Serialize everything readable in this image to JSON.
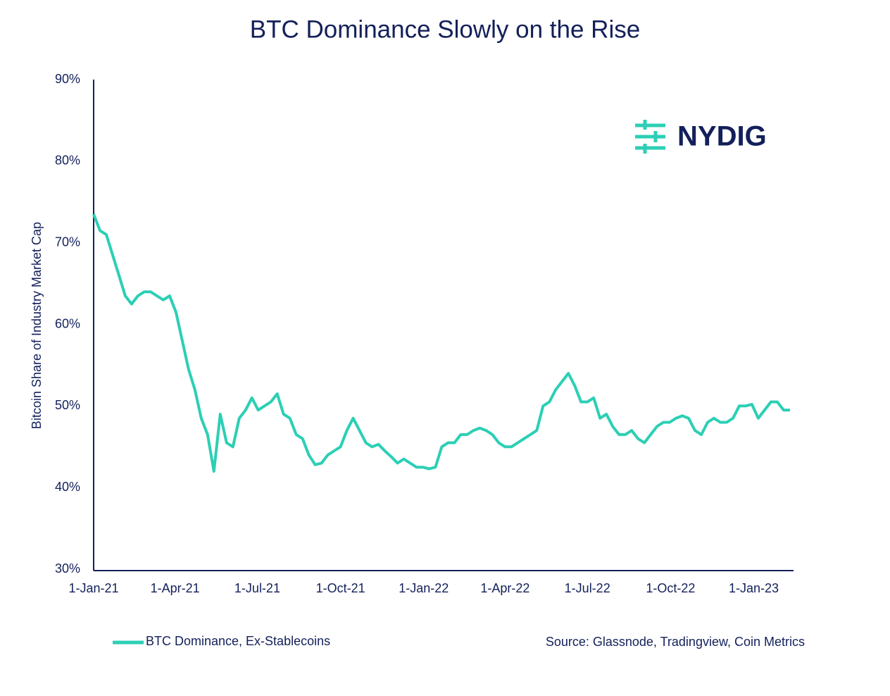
{
  "chart_data": {
    "type": "line",
    "title": "BTC Dominance Slowly on the Rise",
    "y_label": "Bitcoin Share of Industry Market Cap",
    "logo": "NYDIG",
    "source": "Source: Glassnode, Tradingview, Coin Metrics",
    "x": [
      "2021-01-01",
      "2021-01-08",
      "2021-01-15",
      "2021-01-22",
      "2021-01-29",
      "2021-02-05",
      "2021-02-12",
      "2021-02-19",
      "2021-02-26",
      "2021-03-05",
      "2021-03-12",
      "2021-03-19",
      "2021-03-26",
      "2021-04-02",
      "2021-04-09",
      "2021-04-16",
      "2021-04-23",
      "2021-04-30",
      "2021-05-07",
      "2021-05-14",
      "2021-05-21",
      "2021-05-28",
      "2021-06-04",
      "2021-06-11",
      "2021-06-18",
      "2021-06-25",
      "2021-07-02",
      "2021-07-09",
      "2021-07-16",
      "2021-07-23",
      "2021-07-30",
      "2021-08-06",
      "2021-08-13",
      "2021-08-20",
      "2021-08-27",
      "2021-09-03",
      "2021-09-10",
      "2021-09-17",
      "2021-09-24",
      "2021-10-01",
      "2021-10-08",
      "2021-10-15",
      "2021-10-22",
      "2021-10-29",
      "2021-11-05",
      "2021-11-12",
      "2021-11-19",
      "2021-11-26",
      "2021-12-03",
      "2021-12-10",
      "2021-12-17",
      "2021-12-24",
      "2021-12-31",
      "2022-01-07",
      "2022-01-14",
      "2022-01-21",
      "2022-01-28",
      "2022-02-04",
      "2022-02-11",
      "2022-02-18",
      "2022-02-25",
      "2022-03-04",
      "2022-03-11",
      "2022-03-18",
      "2022-03-25",
      "2022-04-01",
      "2022-04-08",
      "2022-04-15",
      "2022-04-22",
      "2022-04-29",
      "2022-05-06",
      "2022-05-13",
      "2022-05-20",
      "2022-05-27",
      "2022-06-03",
      "2022-06-10",
      "2022-06-17",
      "2022-06-24",
      "2022-07-01",
      "2022-07-08",
      "2022-07-15",
      "2022-07-22",
      "2022-07-29",
      "2022-08-05",
      "2022-08-12",
      "2022-08-19",
      "2022-08-26",
      "2022-09-02",
      "2022-09-09",
      "2022-09-16",
      "2022-09-23",
      "2022-09-30",
      "2022-10-07",
      "2022-10-14",
      "2022-10-21",
      "2022-10-28",
      "2022-11-04",
      "2022-11-11",
      "2022-11-18",
      "2022-11-25",
      "2022-12-02",
      "2022-12-09",
      "2022-12-16",
      "2022-12-23",
      "2022-12-30",
      "2023-01-06",
      "2023-01-13",
      "2023-01-20",
      "2023-01-27",
      "2023-02-03",
      "2023-02-10"
    ],
    "series": [
      {
        "name": "BTC Dominance, Ex-Stablecoins",
        "color": "#2ccfb5",
        "values": [
          73.5,
          71.5,
          71,
          68.5,
          66,
          63.5,
          62.5,
          63.5,
          64,
          64,
          63.5,
          63,
          63.5,
          61.5,
          58,
          54.5,
          52,
          48.5,
          46.5,
          42,
          49,
          45.5,
          45,
          48.5,
          49.5,
          51,
          49.5,
          50,
          50.5,
          51.5,
          49,
          48.5,
          46.5,
          46,
          44,
          42.8,
          43,
          44,
          44.5,
          45,
          47,
          48.5,
          47,
          45.5,
          45,
          45.3,
          44.5,
          43.8,
          43,
          43.5,
          43,
          42.5,
          42.5,
          42.3,
          42.5,
          45,
          45.5,
          45.5,
          46.5,
          46.5,
          47,
          47.3,
          47,
          46.5,
          45.5,
          45,
          45,
          45.5,
          46,
          46.5,
          47,
          50,
          50.5,
          52,
          53,
          54,
          52.5,
          50.5,
          50.5,
          51,
          48.5,
          49,
          47.5,
          46.5,
          46.5,
          47,
          46,
          45.5,
          46.5,
          47.5,
          48,
          48,
          48.5,
          48.8,
          48.5,
          47,
          46.5,
          48,
          48.5,
          48,
          48,
          48.5,
          50,
          50,
          50.2,
          48.5,
          49.5,
          50.5,
          50.5,
          49.5,
          49.5
        ]
      }
    ],
    "xlim": [
      "2021-01-01",
      "2023-02-14"
    ],
    "xticks": [
      {
        "value": "2021-01-01",
        "label": "1-Jan-21"
      },
      {
        "value": "2021-04-01",
        "label": "1-Apr-21"
      },
      {
        "value": "2021-07-01",
        "label": "1-Jul-21"
      },
      {
        "value": "2021-10-01",
        "label": "1-Oct-21"
      },
      {
        "value": "2022-01-01",
        "label": "1-Jan-22"
      },
      {
        "value": "2022-04-01",
        "label": "1-Apr-22"
      },
      {
        "value": "2022-07-01",
        "label": "1-Jul-22"
      },
      {
        "value": "2022-10-01",
        "label": "1-Oct-22"
      },
      {
        "value": "2023-01-01",
        "label": "1-Jan-23"
      }
    ],
    "ylim": [
      30,
      90
    ],
    "yticks": [
      {
        "value": 30,
        "label": "30%"
      },
      {
        "value": 40,
        "label": "40%"
      },
      {
        "value": 50,
        "label": "50%"
      },
      {
        "value": 60,
        "label": "60%"
      },
      {
        "value": 70,
        "label": "70%"
      },
      {
        "value": 80,
        "label": "80%"
      },
      {
        "value": 90,
        "label": "90%"
      }
    ],
    "grid": false
  }
}
